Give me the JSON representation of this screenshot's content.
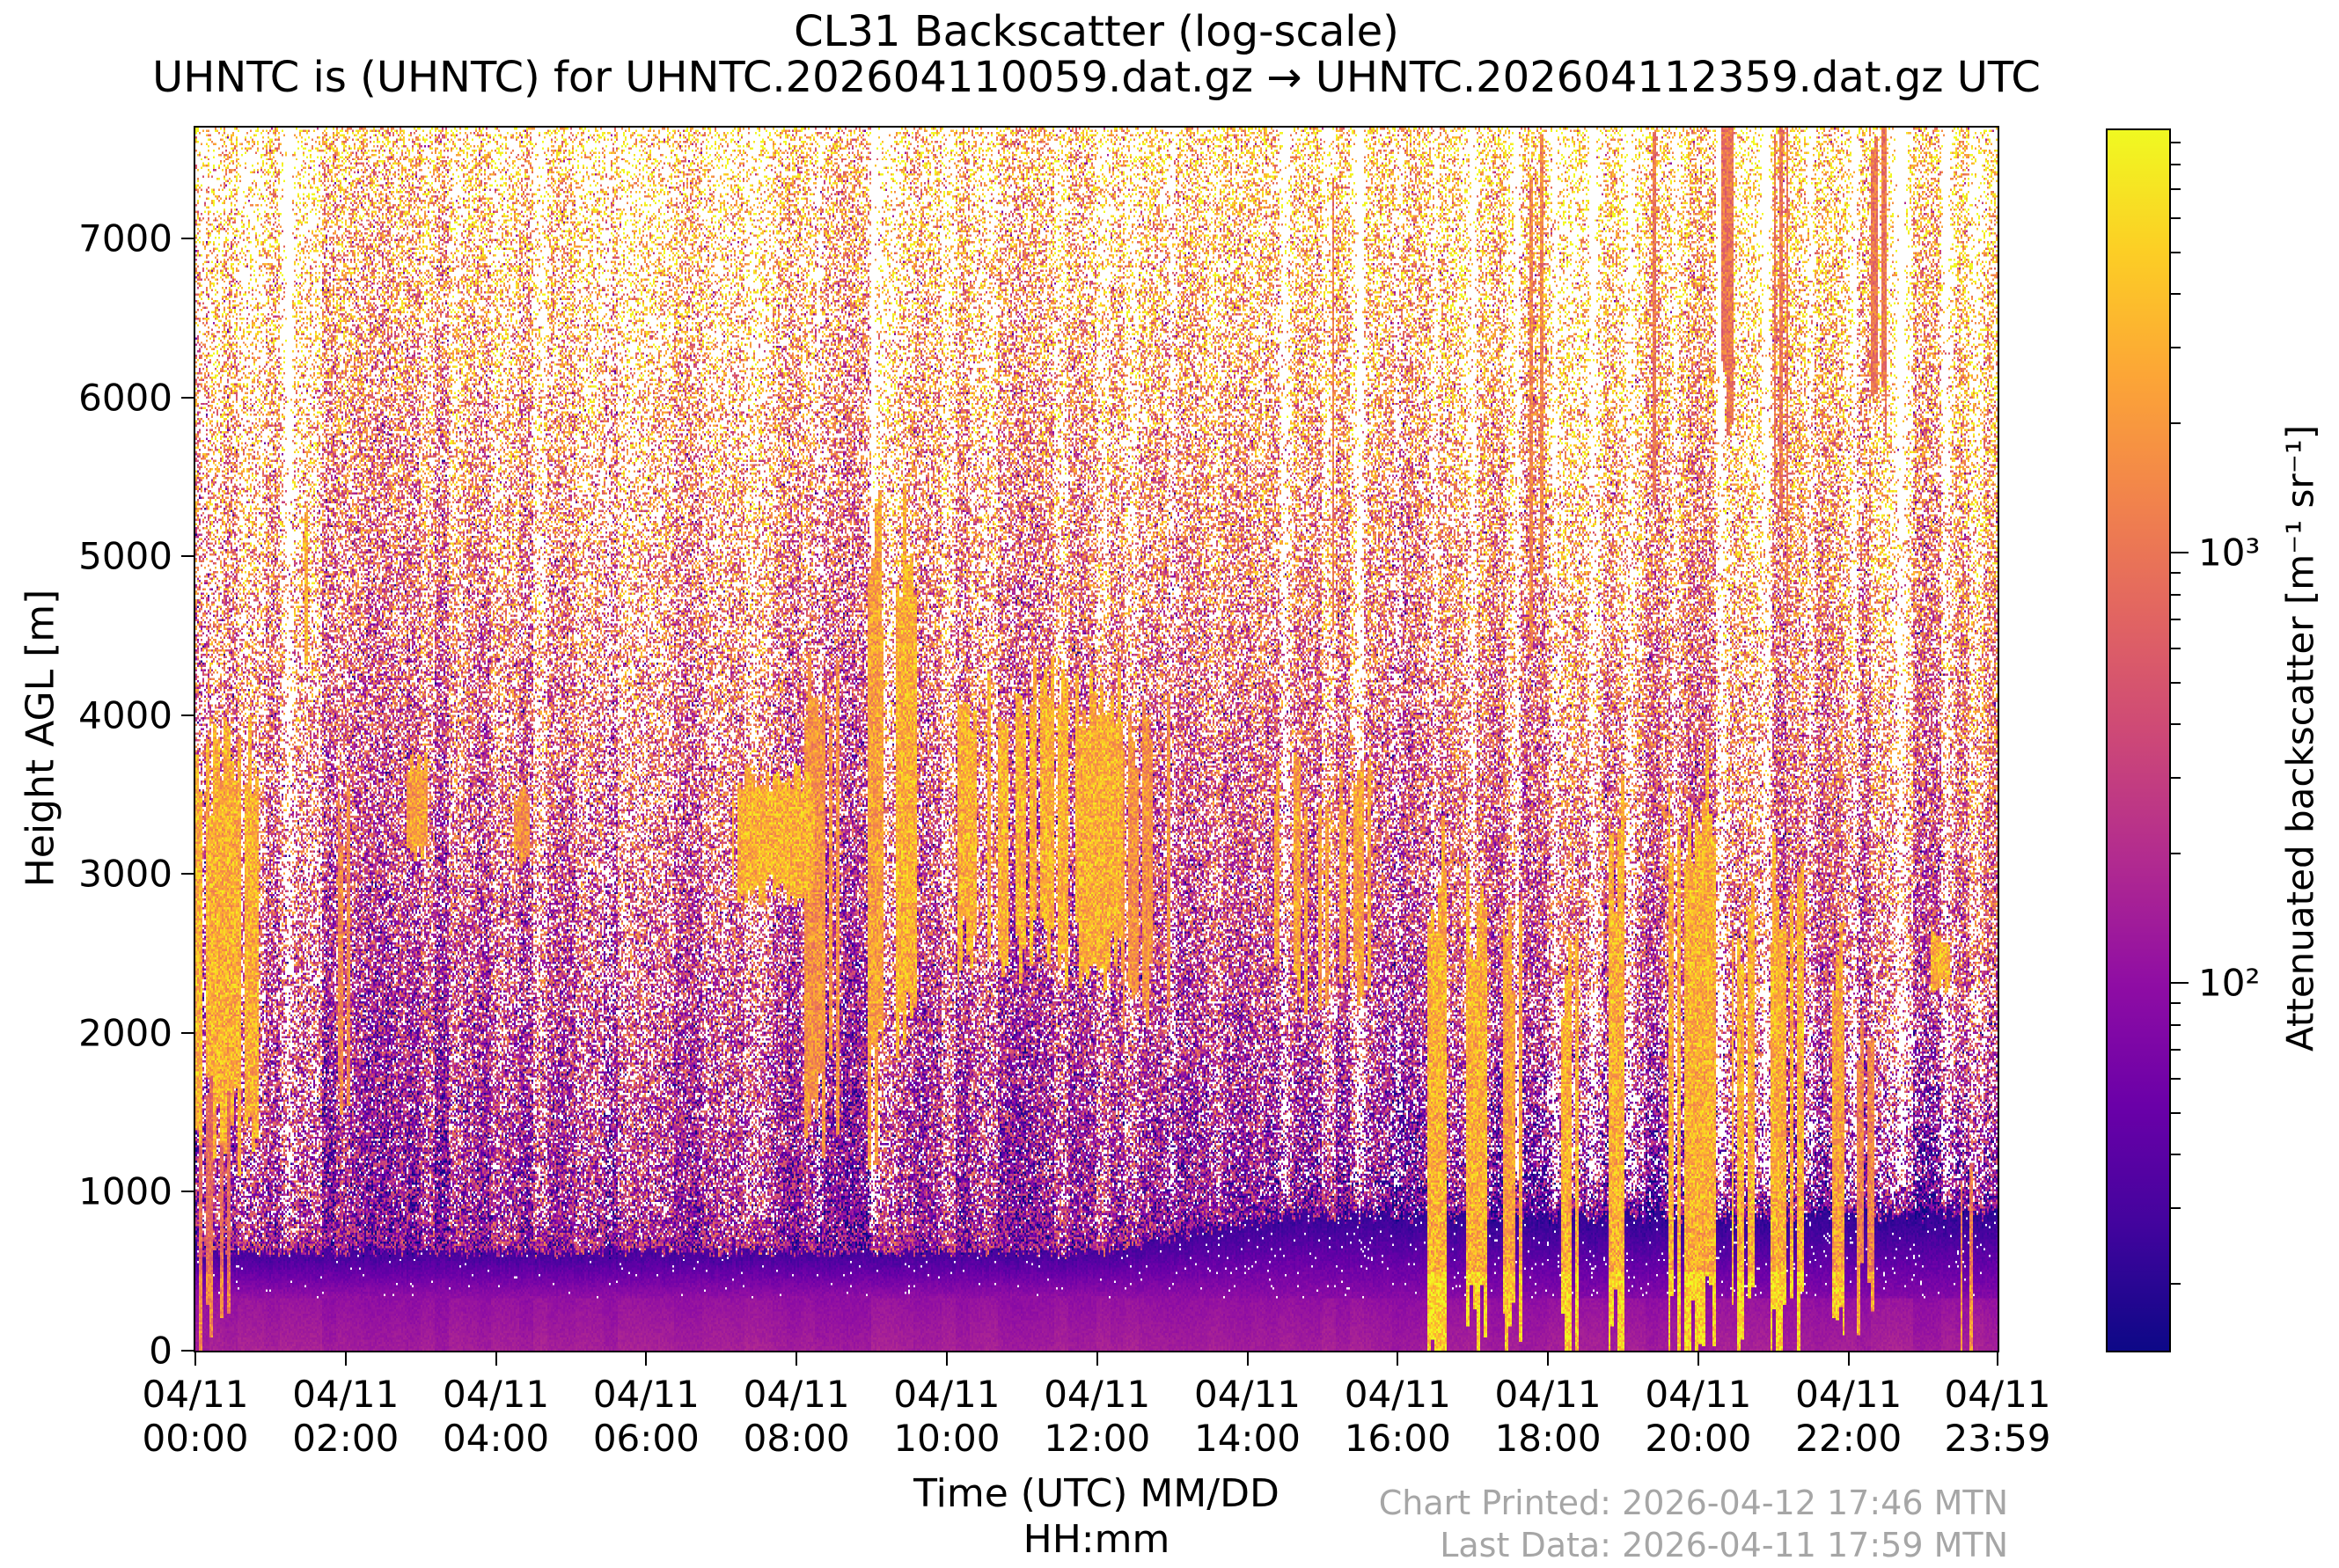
{
  "figure": {
    "title": "CL31 Backscatter (log-scale)",
    "subtitle": "UHNTC is (UHNTC) for UHNTC.202604110059.dat.gz → UHNTC.202604112359.dat.gz UTC"
  },
  "footer": {
    "line1": "Chart Printed: 2026-04-12 17:46 MTN",
    "line2": "Last Data: 2026-04-11 17:59 MTN",
    "color": "#a6a6a6"
  },
  "chart_data": {
    "type": "heatmap",
    "title": "CL31 Backscatter (log-scale)",
    "subtitle": "UHNTC is (UHNTC) for UHNTC.202604110059.dat.gz → UHNTC.202604112359.dat.gz UTC",
    "xlabel_line1": "Time (UTC) MM/DD",
    "xlabel_line2": "HH:mm",
    "ylabel": "Height AGL [m]",
    "grid": false,
    "x_axis": {
      "date": "04/11",
      "range_hours": [
        0,
        23.983
      ],
      "ticks": [
        {
          "hour": 0.0,
          "date": "04/11",
          "time": "00:00"
        },
        {
          "hour": 2.0,
          "date": "04/11",
          "time": "02:00"
        },
        {
          "hour": 4.0,
          "date": "04/11",
          "time": "04:00"
        },
        {
          "hour": 6.0,
          "date": "04/11",
          "time": "06:00"
        },
        {
          "hour": 8.0,
          "date": "04/11",
          "time": "08:00"
        },
        {
          "hour": 10.0,
          "date": "04/11",
          "time": "10:00"
        },
        {
          "hour": 12.0,
          "date": "04/11",
          "time": "12:00"
        },
        {
          "hour": 14.0,
          "date": "04/11",
          "time": "14:00"
        },
        {
          "hour": 16.0,
          "date": "04/11",
          "time": "16:00"
        },
        {
          "hour": 18.0,
          "date": "04/11",
          "time": "18:00"
        },
        {
          "hour": 20.0,
          "date": "04/11",
          "time": "20:00"
        },
        {
          "hour": 22.0,
          "date": "04/11",
          "time": "22:00"
        },
        {
          "hour": 23.983,
          "date": "04/11",
          "time": "23:59"
        }
      ]
    },
    "y_axis": {
      "unit": "m AGL",
      "range": [
        0,
        7700
      ],
      "ticks": [
        0,
        1000,
        2000,
        3000,
        4000,
        5000,
        6000,
        7000
      ]
    },
    "colorbar": {
      "label": "Attenuated backscatter [m⁻¹ sr⁻¹]",
      "scale": "log",
      "major_tick_labels": [
        "10³",
        "10²"
      ],
      "major_tick_values": [
        1000,
        100
      ],
      "value_range_approx": [
        14,
        9600
      ],
      "colormap": "plasma"
    },
    "colormap_stops": [
      [
        0.0,
        "#0d0887"
      ],
      [
        0.1,
        "#41049d"
      ],
      [
        0.2,
        "#6a00a8"
      ],
      [
        0.3,
        "#8f0da4"
      ],
      [
        0.4,
        "#b12a90"
      ],
      [
        0.5,
        "#cc4778"
      ],
      [
        0.6,
        "#e16462"
      ],
      [
        0.7,
        "#f2844b"
      ],
      [
        0.8,
        "#fca636"
      ],
      [
        0.9,
        "#fcce25"
      ],
      [
        1.0,
        "#f0f921"
      ]
    ],
    "field_description": "Speckled log-scale backscatter noise: smooth violet aerosol layer near the surface (deepening and darkening after ~14:00), white/masked speckle density increasing with altitude, purple-magenta mid levels, orange-yellow noise near 7 km; bright vertical cloud and virga streaks listed in features.",
    "features_format": "[start_hour, end_hour, base_km, top_km, column_density, strength]",
    "features": [
      [
        0.0,
        0.85,
        1.4,
        3.7,
        0.8,
        1.0
      ],
      [
        0.0,
        0.5,
        0.15,
        1.6,
        0.4,
        0.75
      ],
      [
        1.35,
        1.5,
        4.2,
        5.2,
        0.85,
        1.0
      ],
      [
        1.9,
        2.1,
        1.5,
        3.4,
        0.6,
        0.85
      ],
      [
        2.8,
        3.1,
        3.1,
        3.7,
        0.85,
        0.95
      ],
      [
        4.25,
        4.45,
        3.1,
        3.5,
        0.75,
        0.9
      ],
      [
        7.15,
        8.25,
        2.9,
        3.6,
        0.95,
        1.0
      ],
      [
        8.1,
        8.65,
        1.5,
        4.1,
        0.55,
        0.9
      ],
      [
        8.9,
        9.15,
        1.6,
        5.0,
        0.85,
        0.95
      ],
      [
        9.3,
        9.6,
        1.8,
        5.05,
        0.85,
        1.0
      ],
      [
        10.15,
        12.35,
        2.5,
        4.15,
        0.8,
        1.0
      ],
      [
        12.35,
        13.3,
        2.2,
        3.9,
        0.45,
        0.9
      ],
      [
        14.35,
        15.65,
        2.3,
        3.6,
        0.55,
        0.95
      ],
      [
        15.0,
        15.15,
        4.5,
        7.7,
        0.7,
        0.8
      ],
      [
        16.35,
        16.65,
        0.0,
        3.0,
        0.85,
        1.0
      ],
      [
        16.9,
        17.2,
        0.0,
        2.9,
        0.9,
        1.0
      ],
      [
        17.4,
        17.65,
        0.0,
        2.5,
        0.85,
        0.95
      ],
      [
        17.75,
        17.95,
        4.8,
        7.7,
        0.7,
        0.85
      ],
      [
        18.15,
        18.4,
        0.0,
        2.3,
        0.85,
        1.0
      ],
      [
        18.8,
        19.05,
        0.0,
        3.2,
        0.9,
        1.0
      ],
      [
        19.3,
        19.5,
        5.5,
        7.7,
        0.65,
        0.8
      ],
      [
        19.6,
        20.25,
        0.0,
        3.4,
        0.85,
        1.0
      ],
      [
        20.3,
        20.5,
        6.0,
        7.7,
        0.65,
        0.8
      ],
      [
        20.45,
        20.75,
        0.0,
        2.7,
        0.9,
        1.0
      ],
      [
        20.95,
        21.45,
        0.0,
        3.0,
        0.85,
        1.0
      ],
      [
        21.0,
        21.2,
        5.0,
        7.7,
        0.6,
        0.8
      ],
      [
        21.7,
        21.95,
        0.0,
        2.4,
        0.85,
        0.95
      ],
      [
        22.1,
        22.35,
        0.3,
        2.0,
        0.6,
        0.85
      ],
      [
        22.3,
        22.5,
        6.0,
        7.7,
        0.6,
        0.8
      ],
      [
        23.1,
        23.35,
        2.3,
        2.6,
        0.95,
        1.0
      ],
      [
        23.5,
        23.7,
        0.0,
        1.2,
        0.55,
        0.8
      ]
    ],
    "noise_columns_hours": [
      0.1,
      1.25,
      5.5,
      8.3,
      9.0,
      13.0,
      14.5,
      15.5,
      16.0,
      16.5,
      17.0,
      17.6,
      18.1,
      18.6,
      19.1,
      19.7,
      20.3,
      20.9,
      21.5,
      22.1,
      22.7,
      23.3
    ]
  }
}
